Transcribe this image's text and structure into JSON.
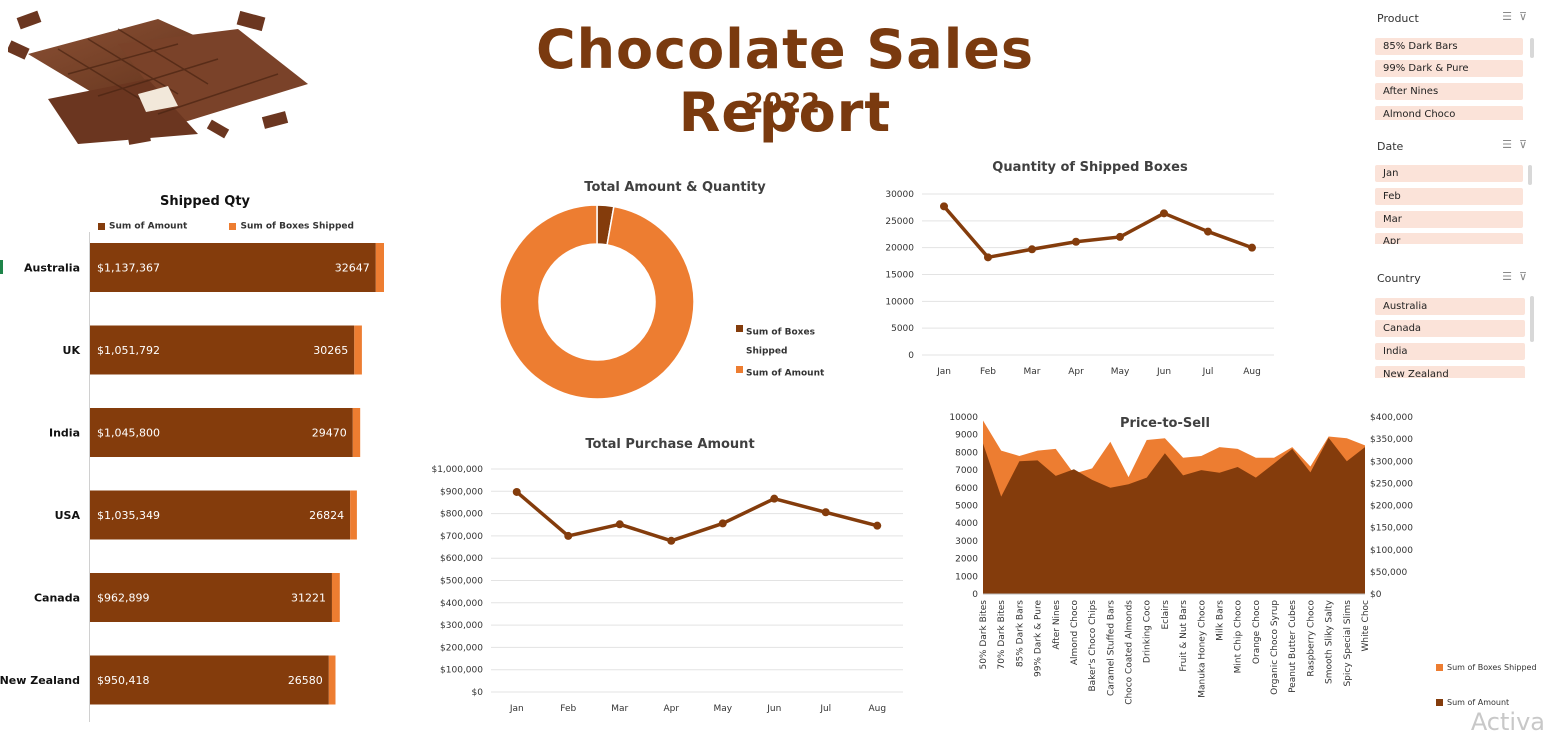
{
  "report": {
    "title": "Chocolate Sales Report",
    "year": "2022"
  },
  "colors": {
    "amount": "#843c0c",
    "boxes": "#ed7d31",
    "title": "#7a3a0f",
    "slicer_item": "#fbe3d9"
  },
  "slicers": [
    {
      "name": "product",
      "header": "Product",
      "items": [
        "85% Dark Bars",
        "99% Dark & Pure",
        "After Nines",
        "Almond Choco"
      ]
    },
    {
      "name": "date",
      "header": "Date",
      "items": [
        "Jan",
        "Feb",
        "Mar",
        "Apr"
      ]
    },
    {
      "name": "country",
      "header": "Country",
      "items": [
        "Australia",
        "Canada",
        "India",
        "New Zealand"
      ]
    }
  ],
  "chart_data": [
    {
      "type": "bar",
      "title": "Shipped Qty",
      "legend": [
        "Sum of Amount",
        "Sum of Boxes Shipped"
      ],
      "categories": [
        "Australia",
        "UK",
        "India",
        "USA",
        "Canada",
        "New Zealand"
      ],
      "series": [
        {
          "name": "Sum of Amount",
          "values": [
            1137367,
            1051792,
            1045800,
            1035349,
            962899,
            950418
          ],
          "labels": [
            "$1,137,367",
            "$1,051,792",
            "$1,045,800",
            "$1,035,349",
            "$962,899",
            "$950,418"
          ]
        },
        {
          "name": "Sum of Boxes Shipped",
          "values": [
            32647,
            30265,
            29470,
            26824,
            31221,
            26580
          ],
          "labels": [
            "32647",
            "30265",
            "29470",
            "26824",
            "31221",
            "26580"
          ]
        }
      ]
    },
    {
      "type": "pie",
      "title": "Total Amount & Quantity",
      "legend": [
        "Sum of Boxes Shipped",
        "Sum of Amount"
      ],
      "values": [
        176990,
        6183625
      ]
    },
    {
      "type": "line",
      "title": "Quantity of Shipped Boxes",
      "categories": [
        "Jan",
        "Feb",
        "Mar",
        "Apr",
        "May",
        "Jun",
        "Jul",
        "Aug"
      ],
      "values": [
        27700,
        18200,
        19700,
        21100,
        22000,
        26400,
        23000,
        20000
      ],
      "ylim": [
        0,
        30000
      ],
      "yticks": [
        "30000",
        "25000",
        "20000",
        "15000",
        "10000",
        "5000",
        "0"
      ]
    },
    {
      "type": "line",
      "title": "Total Purchase Amount",
      "categories": [
        "Jan",
        "Feb",
        "Mar",
        "Apr",
        "May",
        "Jun",
        "Jul",
        "Aug"
      ],
      "values": [
        897000,
        700000,
        752000,
        678000,
        756000,
        867000,
        806000,
        746000
      ],
      "ylim": [
        0,
        1000000
      ],
      "yticks": [
        "$1,000,000",
        "$900,000",
        "$800,000",
        "$700,000",
        "$600,000",
        "$500,000",
        "$400,000",
        "$300,000",
        "$200,000",
        "$100,000",
        "$0"
      ]
    },
    {
      "type": "area",
      "title": "Price-to-Sell",
      "legend": [
        "Sum of Boxes Shipped",
        "Sum of Amount"
      ],
      "categories": [
        "50% Dark Bites",
        "70% Dark Bites",
        "85% Dark Bars",
        "99% Dark & Pure",
        "After Nines",
        "Almond Choco",
        "Baker's Choco Chips",
        "Caramel Stuffed Bars",
        "Choco Coated Almonds",
        "Drinking Coco",
        "Eclairs",
        "Fruit & Nut Bars",
        "Manuka Honey Choco",
        "Milk Bars",
        "Mint Chip Choco",
        "Orange Choco",
        "Organic Choco Syrup",
        "Peanut Butter Cubes",
        "Raspberry Choco",
        "Smooth Sliky Salty",
        "Spicy Special Slims",
        "White Choc"
      ],
      "series": [
        {
          "name": "Sum of Boxes Shipped",
          "axis": "left",
          "values": [
            9800,
            8100,
            7800,
            8100,
            8200,
            6800,
            7100,
            8600,
            6600,
            8700,
            8800,
            7700,
            7800,
            8300,
            8200,
            7700,
            7700,
            8300,
            7200,
            8900,
            8800,
            8400
          ]
        },
        {
          "name": "Sum of Amount",
          "axis": "right",
          "values": [
            340000,
            220000,
            300000,
            302000,
            267000,
            282000,
            258000,
            240000,
            248000,
            263000,
            318000,
            268000,
            280000,
            274000,
            287000,
            263000,
            295000,
            328000,
            275000,
            353000,
            300000,
            332000
          ]
        }
      ],
      "ylim_left": [
        0,
        10000
      ],
      "ylim_right": [
        0,
        400000
      ],
      "yticks_left": [
        "10000",
        "9000",
        "8000",
        "7000",
        "6000",
        "5000",
        "4000",
        "3000",
        "2000",
        "1000",
        "0"
      ],
      "yticks_right": [
        "$400,000",
        "$350,000",
        "$300,000",
        "$250,000",
        "$200,000",
        "$150,000",
        "$100,000",
        "$50,000",
        "$0"
      ]
    }
  ],
  "watermark": "Activa"
}
